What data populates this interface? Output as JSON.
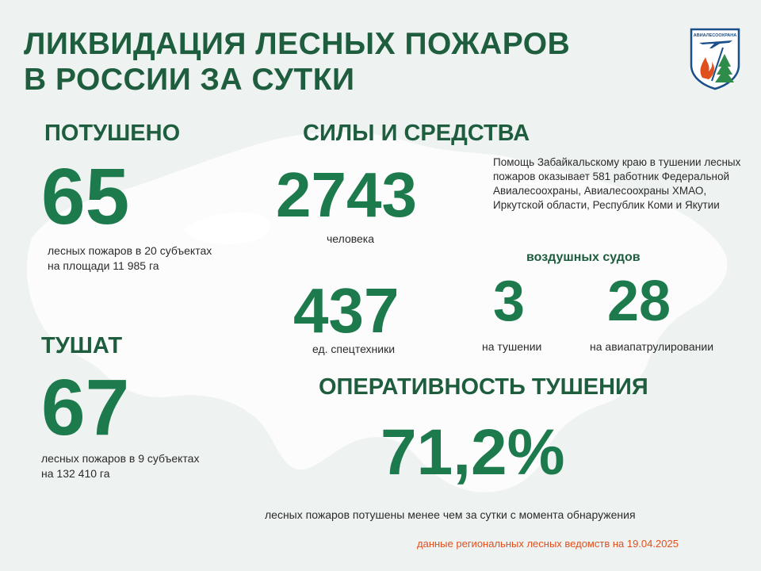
{
  "header": {
    "title_line1": "ЛИКВИДАЦИЯ ЛЕСНЫХ ПОЖАРОВ",
    "title_line2": "В РОССИИ ЗА СУТКИ"
  },
  "logo": {
    "text": "АВИАЛЕСООХРАНА",
    "icon": "avialesookhrana-emblem-icon"
  },
  "extinguished": {
    "heading": "ПОТУШЕНО",
    "value": "65",
    "line1": "лесных пожаров в 20 субъектах",
    "line2": "на площади  11 985 га"
  },
  "fighting": {
    "heading": "ТУШАТ",
    "value": "67",
    "line1": "лесных пожаров в 9 субъектах",
    "line2": "на 132 410 га"
  },
  "forces": {
    "heading": "СИЛЫ И СРЕДСТВА",
    "people_value": "2743",
    "people_label": "человека",
    "note": "Помощь Забайкальскому краю в тушении лесных пожаров оказывает 581 работник Федеральной Авиалесоохраны, Авиалесоохраны ХМАО, Иркутской области, Республик Коми и Якутии",
    "equipment_value": "437",
    "equipment_label": "ед. спецтехники",
    "aircraft_heading": "воздушных судов",
    "aircraft_fighting_value": "3",
    "aircraft_fighting_label": "на тушении",
    "aircraft_patrol_value": "28",
    "aircraft_patrol_label": "на авиапатрулировании"
  },
  "efficiency": {
    "heading": "ОПЕРАТИВНОСТЬ ТУШЕНИЯ",
    "value": "71,2%",
    "label": "лесных пожаров потушены  менее чем за сутки  с момента обнаружения"
  },
  "footer": {
    "source": "данные региональных лесных ведомств на 19.04.2025"
  },
  "colors": {
    "background": "#eef2f0",
    "heading": "#1e5e3e",
    "accent_green": "#1d7a4d",
    "footer_orange": "#e0501f"
  }
}
